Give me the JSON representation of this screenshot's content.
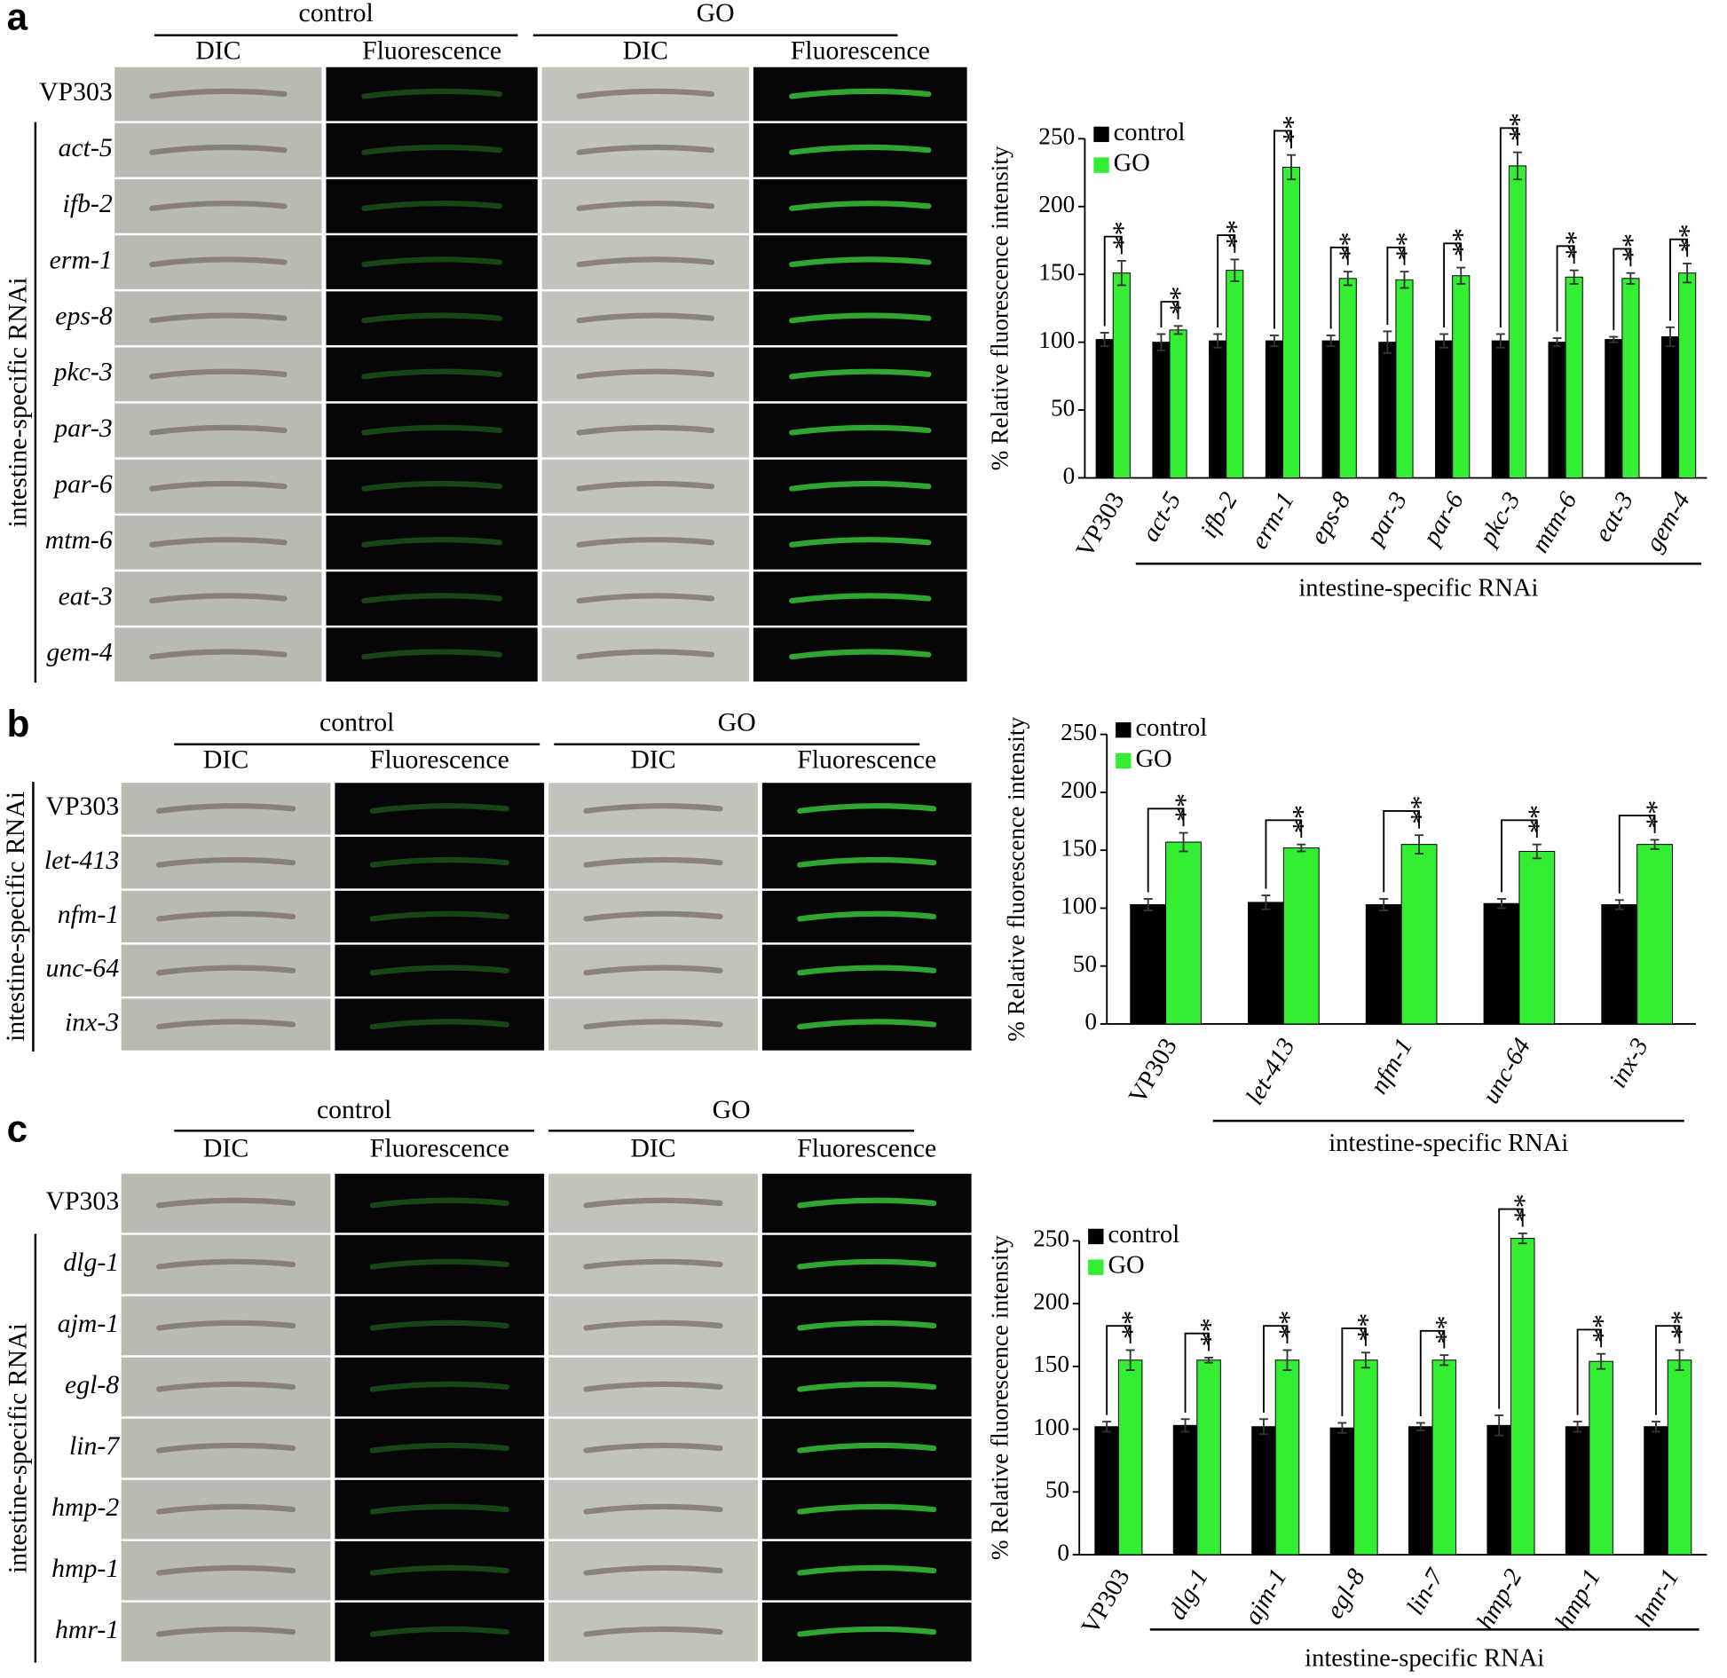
{
  "panels": [
    {
      "label": "a",
      "groups": [
        "control",
        "GO"
      ],
      "columns": [
        "DIC",
        "Fluorescence",
        "DIC",
        "Fluorescence"
      ],
      "rows": [
        "VP303",
        "act-5",
        "ifb-2",
        "erm-1",
        "eps-8",
        "pkc-3",
        "par-3",
        "par-6",
        "mtm-6",
        "eat-3",
        "gem-4"
      ],
      "side_label": "intestine-specific RNAi"
    },
    {
      "label": "b",
      "groups": [
        "control",
        "GO"
      ],
      "columns": [
        "DIC",
        "Fluorescence",
        "DIC",
        "Fluorescence"
      ],
      "rows": [
        "VP303",
        "let-413",
        "nfm-1",
        "unc-64",
        "inx-3"
      ],
      "side_label": "intestine-specific RNAi"
    },
    {
      "label": "c",
      "groups": [
        "control",
        "GO"
      ],
      "columns": [
        "DIC",
        "Fluorescence",
        "DIC",
        "Fluorescence"
      ],
      "rows": [
        "VP303",
        "dlg-1",
        "ajm-1",
        "egl-8",
        "lin-7",
        "hmp-2",
        "hmp-1",
        "hmr-1"
      ],
      "side_label": "intestine-specific RNAi"
    }
  ],
  "chart_data": [
    {
      "type": "bar",
      "y_label": "% Relative fluorescence intensity",
      "group_label": "intestine-specific RNAi",
      "categories": [
        "VP303",
        "act-5",
        "ifb-2",
        "erm-1",
        "eps-8",
        "par-3",
        "par-6",
        "pkc-3",
        "mtm-6",
        "eat-3",
        "gem-4"
      ],
      "series": [
        {
          "name": "control",
          "color": "#000000",
          "values": [
            102,
            100,
            101,
            101,
            101,
            100,
            101,
            101,
            100,
            102,
            104
          ],
          "errors": [
            5,
            6,
            5,
            4,
            4,
            8,
            5,
            5,
            3,
            2,
            7
          ]
        },
        {
          "name": "GO",
          "color": "#33ee33",
          "values": [
            151,
            109,
            153,
            229,
            147,
            146,
            149,
            230,
            148,
            147,
            151
          ],
          "errors": [
            9,
            3,
            8,
            9,
            5,
            6,
            6,
            10,
            5,
            4,
            7
          ]
        }
      ],
      "significance": [
        "**",
        "**",
        "**",
        "**",
        "**",
        "**",
        "**",
        "**",
        "**",
        "**",
        "**"
      ],
      "ylim": [
        0,
        250
      ],
      "yticks": [
        0,
        50,
        100,
        150,
        200,
        250
      ],
      "legend": "upper left"
    },
    {
      "type": "bar",
      "y_label": "% Relative fluorescence intensity",
      "group_label": "intestine-specific RNAi",
      "categories": [
        "VP303",
        "let-413",
        "nfm-1",
        "unc-64",
        "inx-3"
      ],
      "series": [
        {
          "name": "control",
          "color": "#000000",
          "values": [
            103,
            105,
            103,
            104,
            103
          ],
          "errors": [
            5,
            6,
            5,
            4,
            4
          ]
        },
        {
          "name": "GO",
          "color": "#33ee33",
          "values": [
            157,
            152,
            155,
            149,
            155
          ],
          "errors": [
            8,
            3,
            8,
            6,
            4
          ]
        }
      ],
      "significance": [
        "**",
        "**",
        "**",
        "**",
        "**"
      ],
      "ylim": [
        0,
        250
      ],
      "yticks": [
        0,
        50,
        100,
        150,
        200,
        250
      ],
      "legend": "upper left"
    },
    {
      "type": "bar",
      "y_label": "% Relative fluorescence intensity",
      "group_label": "intestine-specific RNAi",
      "categories": [
        "VP303",
        "dlg-1",
        "ajm-1",
        "egl-8",
        "lin-7",
        "hmp-2",
        "hmp-1",
        "hmr-1"
      ],
      "series": [
        {
          "name": "control",
          "color": "#000000",
          "values": [
            102,
            103,
            102,
            101,
            102,
            103,
            102,
            102
          ],
          "errors": [
            4,
            5,
            6,
            4,
            3,
            8,
            4,
            4
          ]
        },
        {
          "name": "GO",
          "color": "#33ee33",
          "values": [
            155,
            155,
            155,
            155,
            155,
            252,
            154,
            155
          ],
          "errors": [
            8,
            2,
            8,
            6,
            4,
            4,
            6,
            8
          ]
        }
      ],
      "significance": [
        "**",
        "**",
        "**",
        "**",
        "**",
        "**",
        "**",
        "**"
      ],
      "ylim": [
        0,
        250
      ],
      "yticks": [
        0,
        50,
        100,
        150,
        200,
        250
      ],
      "legend": "upper left"
    }
  ]
}
